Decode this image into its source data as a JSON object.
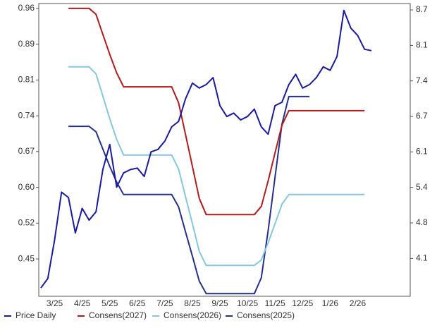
{
  "chart_data": {
    "type": "line",
    "categories": [
      null,
      null,
      "3/25",
      null,
      null,
      null,
      "4/25",
      null,
      null,
      null,
      "5/25",
      null,
      null,
      null,
      "6/25",
      null,
      null,
      null,
      "7/25",
      null,
      null,
      null,
      "8/25",
      null,
      null,
      null,
      "9/25",
      null,
      null,
      null,
      "10/25",
      null,
      null,
      null,
      "11/25",
      null,
      null,
      null,
      "12/25",
      null,
      null,
      null,
      "1/26",
      null,
      null,
      null,
      "2/26",
      null,
      null
    ],
    "series": [
      {
        "name": "Price Daily",
        "color": "#1a1a9c",
        "axis": "y",
        "values": [
          0.391,
          0.41,
          0.489,
          0.586,
          0.575,
          0.503,
          0.553,
          0.529,
          0.546,
          0.632,
          0.683,
          0.596,
          0.625,
          0.632,
          0.635,
          0.618,
          0.668,
          0.673,
          0.69,
          0.719,
          0.73,
          0.776,
          0.808,
          0.798,
          0.805,
          0.819,
          0.762,
          0.74,
          0.747,
          0.733,
          0.74,
          0.755,
          0.719,
          0.704,
          0.762,
          0.769,
          0.805,
          0.826,
          0.798,
          0.805,
          0.819,
          0.841,
          0.834,
          0.862,
          0.956,
          0.92,
          0.905,
          0.877,
          0.874
        ]
      },
      {
        "name": "Consens(2027)",
        "color": "#b01c1c",
        "axis": "y2",
        "values": [
          null,
          null,
          null,
          null,
          8.74,
          8.74,
          8.74,
          8.74,
          8.63,
          8.26,
          7.89,
          7.55,
          7.29,
          7.29,
          7.29,
          7.29,
          7.29,
          7.29,
          7.29,
          7.29,
          6.995,
          6.41,
          5.82,
          5.23,
          4.93,
          4.93,
          4.93,
          4.93,
          4.93,
          4.93,
          4.93,
          4.93,
          5.08,
          5.55,
          6.07,
          6.58,
          6.85,
          6.85,
          6.85,
          6.85,
          6.85,
          6.85,
          6.85,
          6.85,
          6.85,
          6.85,
          6.85,
          6.85,
          null
        ]
      },
      {
        "name": "Consens(2026)",
        "color": "#86c6de",
        "axis": "y2",
        "values": [
          null,
          null,
          null,
          null,
          7.66,
          7.66,
          7.66,
          7.66,
          7.53,
          7.12,
          6.7,
          6.32,
          6.03,
          6.03,
          6.03,
          6.03,
          6.03,
          6.03,
          6.03,
          6.03,
          5.77,
          5.26,
          4.76,
          4.25,
          3.99,
          3.99,
          3.99,
          3.99,
          3.99,
          3.99,
          3.99,
          3.99,
          4.09,
          4.41,
          4.76,
          5.12,
          5.3,
          5.3,
          5.3,
          5.3,
          5.3,
          5.3,
          5.3,
          5.3,
          5.3,
          5.3,
          5.3,
          5.3,
          null
        ]
      },
      {
        "name": "Consens(2025)",
        "color": "#25308c",
        "axis": "y2",
        "values": [
          null,
          null,
          null,
          null,
          6.56,
          6.56,
          6.56,
          6.56,
          6.46,
          6.14,
          5.82,
          5.53,
          5.3,
          5.3,
          5.3,
          5.3,
          5.3,
          5.3,
          5.3,
          5.3,
          5.07,
          4.61,
          4.16,
          3.7,
          3.47,
          3.47,
          3.47,
          3.47,
          3.47,
          3.47,
          3.47,
          3.47,
          3.76,
          4.63,
          5.62,
          6.6,
          7.11,
          7.11,
          7.11,
          7.11,
          null,
          null,
          null,
          null,
          null,
          null,
          null,
          null,
          null
        ]
      }
    ],
    "ylim": [
      0.374,
      0.97
    ],
    "yticks": [
      {
        "value": 0.45,
        "label": "0.45"
      },
      {
        "value": 0.5229,
        "label": "0.52"
      },
      {
        "value": 0.5957,
        "label": "0.60"
      },
      {
        "value": 0.6686,
        "label": "0.67"
      },
      {
        "value": 0.7414,
        "label": "0.74"
      },
      {
        "value": 0.8143,
        "label": "0.81"
      },
      {
        "value": 0.8871,
        "label": "0.89"
      },
      {
        "value": 0.96,
        "label": "0.96"
      }
    ],
    "y2lim": [
      3.42,
      8.83
    ],
    "y2ticks": [
      {
        "value": 4.12,
        "label": "4.1"
      },
      {
        "value": 4.776,
        "label": "4.8"
      },
      {
        "value": 5.432,
        "label": "5.4"
      },
      {
        "value": 6.088,
        "label": "6.1"
      },
      {
        "value": 6.744,
        "label": "6.7"
      },
      {
        "value": 7.4,
        "label": "7.4"
      },
      {
        "value": 8.056,
        "label": "8.1"
      },
      {
        "value": 8.712,
        "label": "8.7"
      }
    ],
    "legend": "bottom"
  }
}
